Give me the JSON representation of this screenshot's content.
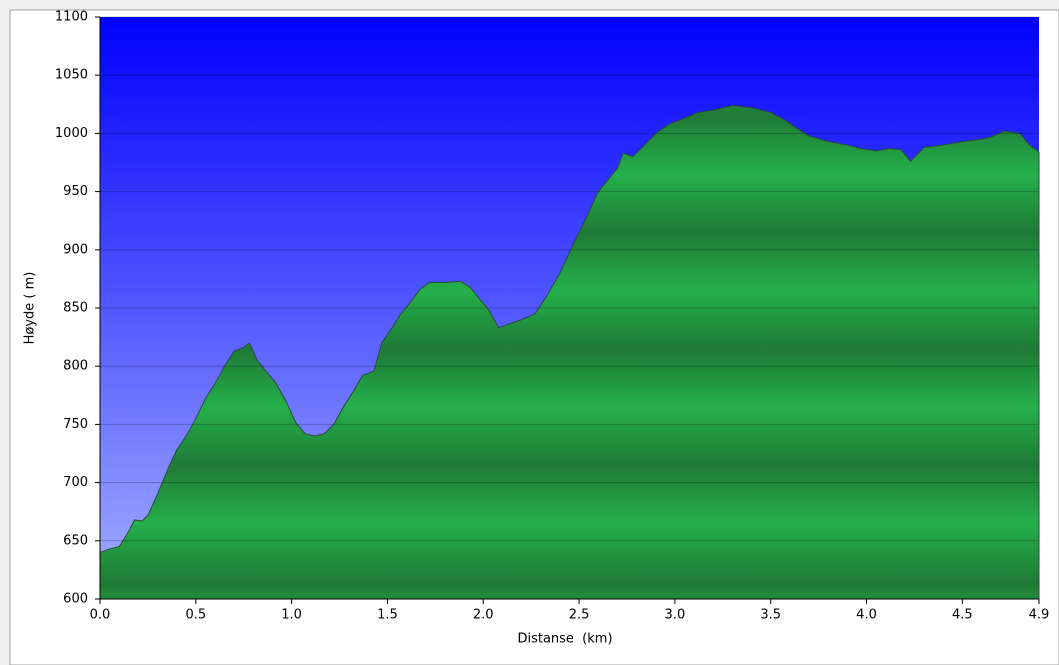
{
  "chart_data": {
    "type": "area",
    "x_label": "Distanse  (km)",
    "y_label": "Høyde ( m)",
    "x": [
      0.0,
      0.05,
      0.1,
      0.15,
      0.18,
      0.22,
      0.25,
      0.3,
      0.35,
      0.4,
      0.45,
      0.5,
      0.55,
      0.6,
      0.65,
      0.7,
      0.75,
      0.78,
      0.82,
      0.87,
      0.92,
      0.97,
      1.02,
      1.07,
      1.12,
      1.17,
      1.22,
      1.27,
      1.32,
      1.37,
      1.43,
      1.47,
      1.52,
      1.57,
      1.62,
      1.67,
      1.72,
      1.8,
      1.88,
      1.93,
      1.98,
      2.03,
      2.08,
      2.13,
      2.2,
      2.27,
      2.33,
      2.4,
      2.47,
      2.53,
      2.6,
      2.65,
      2.7,
      2.73,
      2.78,
      2.83,
      2.9,
      2.97,
      3.05,
      3.12,
      3.2,
      3.3,
      3.4,
      3.5,
      3.57,
      3.63,
      3.7,
      3.8,
      3.9,
      3.97,
      4.05,
      4.12,
      4.18,
      4.23,
      4.3,
      4.4,
      4.5,
      4.6,
      4.65,
      4.72,
      4.8,
      4.85,
      4.9
    ],
    "values": [
      640,
      643,
      645,
      658,
      668,
      667,
      672,
      690,
      710,
      728,
      740,
      755,
      772,
      785,
      800,
      813,
      816,
      820,
      805,
      795,
      785,
      770,
      752,
      742,
      740,
      742,
      750,
      765,
      778,
      792,
      796,
      820,
      832,
      845,
      855,
      866,
      872,
      872,
      873,
      868,
      858,
      848,
      833,
      836,
      840,
      845,
      860,
      880,
      905,
      925,
      950,
      960,
      970,
      983,
      980,
      988,
      1000,
      1008,
      1013,
      1018,
      1020,
      1024,
      1022,
      1018,
      1012,
      1005,
      998,
      993,
      990,
      987,
      985,
      987,
      986,
      976,
      988,
      990,
      993,
      995,
      997,
      1002,
      1000,
      990,
      984
    ],
    "color": "#22a846",
    "xlim": [
      0,
      4.9
    ],
    "ylim": [
      600,
      1100
    ],
    "xticks": [
      {
        "value": 0,
        "label": "0.0"
      },
      0.5,
      {
        "value": 1,
        "label": "1.0"
      },
      1.5,
      {
        "value": 2,
        "label": "2.0"
      },
      2.5,
      {
        "value": 3,
        "label": "3.0"
      },
      3.5,
      {
        "value": 4,
        "label": "4.0"
      },
      4.5,
      4.9
    ],
    "yticks": [
      600,
      650,
      700,
      750,
      800,
      850,
      900,
      950,
      1000,
      1050,
      1100
    ],
    "grid": true
  }
}
